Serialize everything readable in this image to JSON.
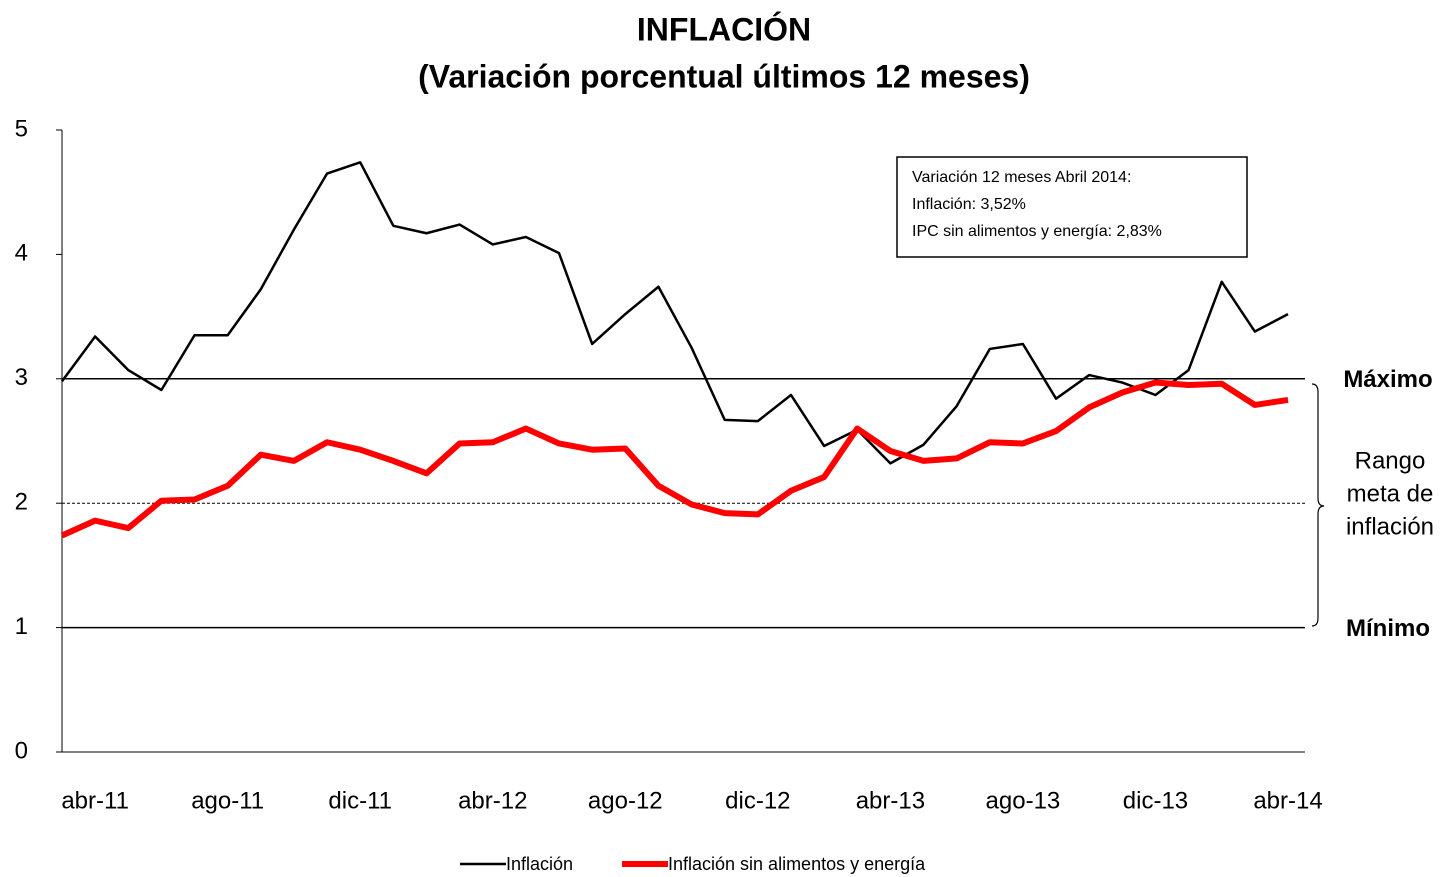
{
  "chart_data": {
    "type": "line",
    "title": [
      "INFLACIÓN",
      "(Variación porcentual  últimos 12 meses)"
    ],
    "categories": [
      null,
      "abr-11",
      null,
      null,
      null,
      "ago-11",
      null,
      null,
      null,
      "dic-11",
      null,
      null,
      null,
      "abr-12",
      null,
      null,
      null,
      "ago-12",
      null,
      null,
      null,
      "dic-12",
      null,
      null,
      null,
      "abr-13",
      null,
      null,
      null,
      "ago-13",
      null,
      null,
      null,
      "dic-13",
      null,
      null,
      null,
      "abr-14"
    ],
    "series": [
      {
        "name": "Inflación",
        "color": "#000000",
        "width": 2.5,
        "values": [
          2.98,
          3.34,
          3.07,
          2.91,
          3.35,
          3.35,
          3.72,
          4.2,
          4.65,
          4.74,
          4.23,
          4.17,
          4.24,
          4.08,
          4.14,
          4.01,
          3.28,
          3.52,
          3.74,
          3.25,
          2.67,
          2.66,
          2.87,
          2.46,
          2.59,
          2.32,
          2.47,
          2.78,
          3.24,
          3.28,
          2.84,
          3.03,
          2.97,
          2.87,
          3.07,
          3.78,
          3.38,
          3.52
        ]
      },
      {
        "name": "Inflación sin alimentos y energía",
        "color": "#ff0000",
        "width": 6,
        "values": [
          1.74,
          1.86,
          1.8,
          2.02,
          2.03,
          2.14,
          2.39,
          2.34,
          2.49,
          2.43,
          2.34,
          2.24,
          2.48,
          2.49,
          2.6,
          2.48,
          2.43,
          2.44,
          2.14,
          1.99,
          1.92,
          1.91,
          2.1,
          2.21,
          2.6,
          2.42,
          2.34,
          2.36,
          2.49,
          2.48,
          2.58,
          2.77,
          2.89,
          2.97,
          2.95,
          2.96,
          2.79,
          2.83
        ]
      }
    ],
    "ylim": [
      0,
      5
    ],
    "yticks": [
      0,
      1,
      2,
      3,
      4,
      5
    ],
    "grid": false,
    "reference_lines": [
      {
        "value": 3,
        "label": "Máximo",
        "style": "solid"
      },
      {
        "value": 2,
        "style": "dashed"
      },
      {
        "value": 1,
        "label": "Mínimo",
        "style": "solid"
      }
    ],
    "range_label": [
      "Rango",
      "meta de",
      "inflación"
    ],
    "annotation": [
      "Variación 12 meses Abril 2014:",
      "Inflación: 3,52%",
      "IPC sin alimentos y energía: 2,83%"
    ],
    "legend": "bottom"
  }
}
